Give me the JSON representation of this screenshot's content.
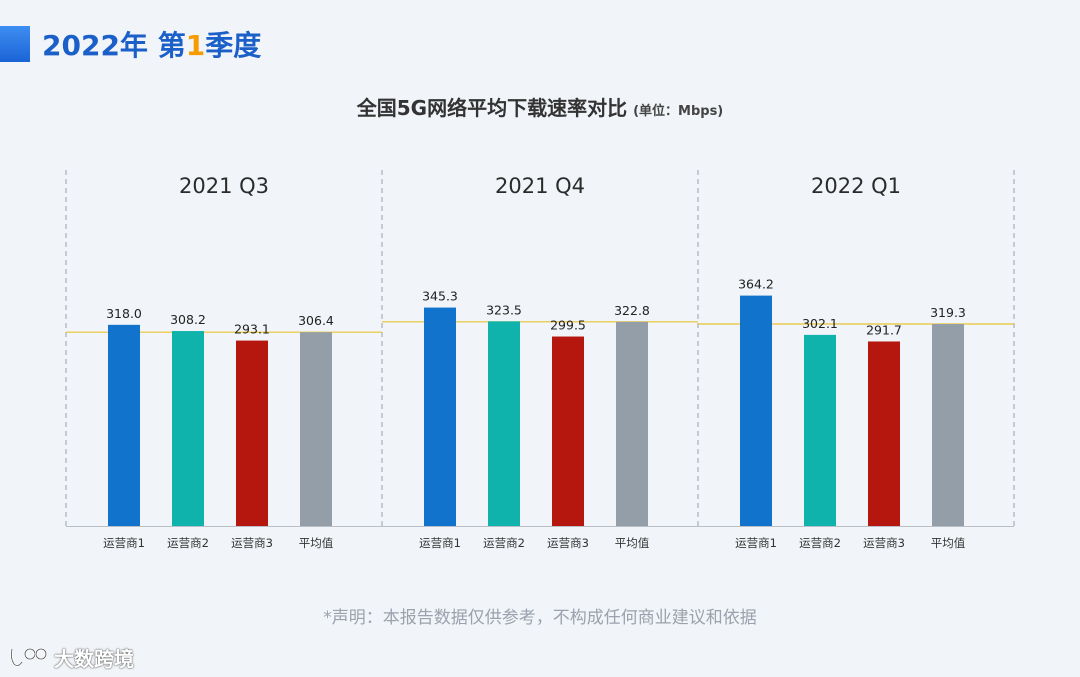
{
  "header": {
    "year": "2022年",
    "quarter_prefix": "第",
    "quarter_num": "1",
    "quarter_suffix": "季度"
  },
  "chart_title": "全国5G网络平均下载速率对比",
  "chart_unit": "(单位：Mbps)",
  "note": "*声明：本报告数据仅供参考，不构成任何商业建议和依据",
  "brand": {
    "name": "大数跨境"
  },
  "colors": {
    "operator1": "#1173cc",
    "operator2": "#0fb3ac",
    "operator3": "#b5170f",
    "average": "#949ea9",
    "avg_line": "#e8c430",
    "divider": "#9aa0a8",
    "header_blue": "#1b5fc9",
    "header_orange": "#f59d00"
  },
  "chart_data": {
    "type": "bar",
    "title": "全国5G网络平均下载速率对比",
    "unit": "Mbps",
    "ylim": [
      0,
      400
    ],
    "categories": [
      "运营商1",
      "运营商2",
      "运营商3",
      "平均值"
    ],
    "panels": [
      {
        "label": "2021 Q3",
        "values": [
          318.0,
          308.2,
          293.1,
          306.4
        ],
        "value_labels": [
          "318.0",
          "308.2",
          "293.1",
          "306.4"
        ]
      },
      {
        "label": "2021 Q4",
        "values": [
          345.3,
          323.5,
          299.5,
          322.8
        ],
        "value_labels": [
          "345.3",
          "323.5",
          "299.5",
          "322.8"
        ]
      },
      {
        "label": "2022 Q1",
        "values": [
          364.2,
          302.1,
          291.7,
          319.3
        ],
        "value_labels": [
          "364.2",
          "302.1",
          "291.7",
          "319.3"
        ]
      }
    ]
  }
}
